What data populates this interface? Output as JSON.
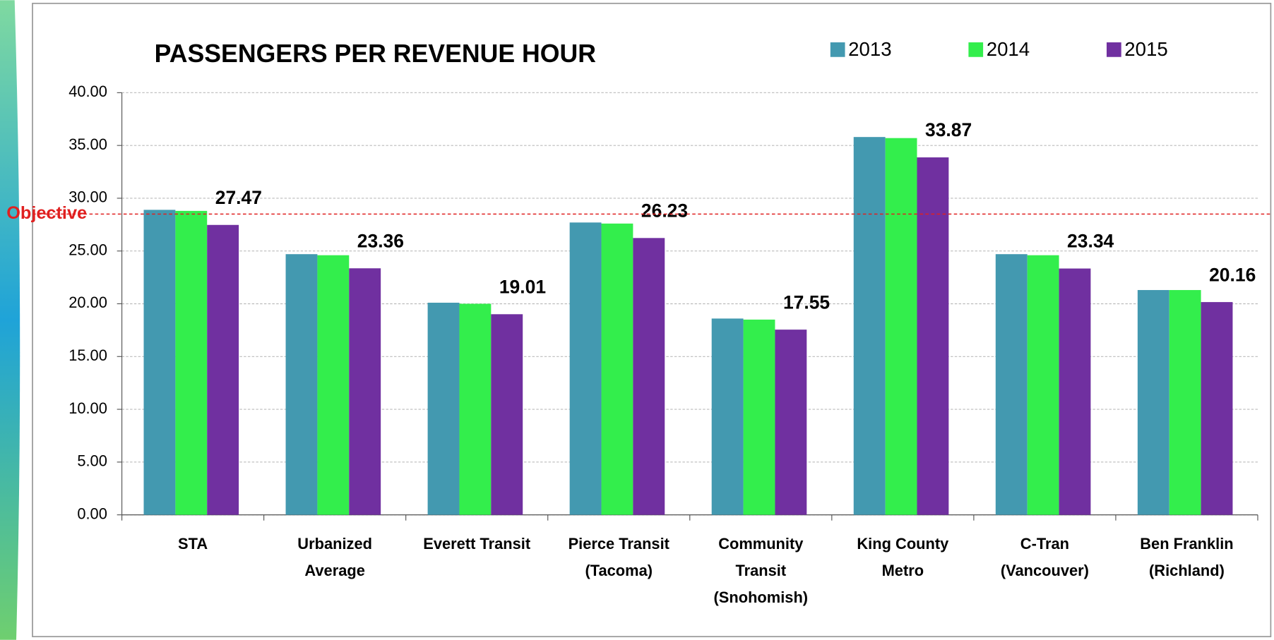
{
  "chart_data": {
    "type": "bar",
    "title": "PASSENGERS PER REVENUE HOUR",
    "categories": [
      "STA",
      "Urbanized\nAverage",
      "Everett Transit",
      "Pierce Transit\n(Tacoma)",
      "Community\nTransit\n(Snohomish)",
      "King County\nMetro",
      "C-Tran\n(Vancouver)",
      "Ben Franklin\n(Richland)"
    ],
    "series": [
      {
        "name": "2013",
        "color": "#4399b0",
        "values": [
          28.9,
          24.7,
          20.1,
          27.7,
          18.6,
          35.8,
          24.7,
          21.3
        ]
      },
      {
        "name": "2014",
        "color": "#33ee4c",
        "values": [
          28.8,
          24.6,
          20.0,
          27.6,
          18.5,
          35.7,
          24.6,
          21.3
        ]
      },
      {
        "name": "2015",
        "color": "#7030a0",
        "values": [
          27.47,
          23.36,
          19.01,
          26.23,
          17.55,
          33.87,
          23.34,
          20.16
        ]
      }
    ],
    "ylim": [
      0,
      40
    ],
    "yticks": [
      {
        "value": 0,
        "label": "0.00"
      },
      {
        "value": 5,
        "label": "5.00"
      },
      {
        "value": 10,
        "label": "10.00"
      },
      {
        "value": 15,
        "label": "15.00"
      },
      {
        "value": 20,
        "label": "20.00"
      },
      {
        "value": 25,
        "label": "25.00"
      },
      {
        "value": 30,
        "label": "30.00"
      },
      {
        "value": 35,
        "label": "35.00"
      },
      {
        "value": 40,
        "label": "40.00"
      }
    ],
    "grid": true,
    "legend": "top-right",
    "objective": {
      "label": "Objective",
      "value": 28.5
    }
  }
}
